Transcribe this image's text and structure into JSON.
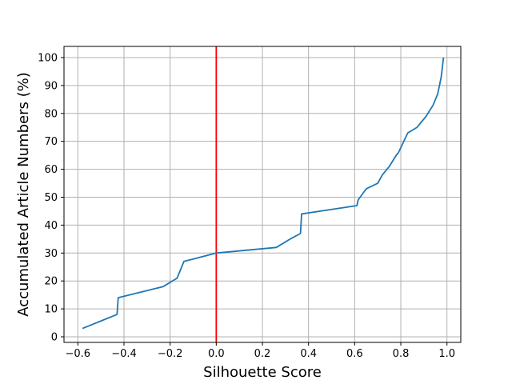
{
  "chart_data": {
    "type": "line",
    "title": "",
    "xlabel": "Silhouette Score",
    "ylabel": "Accumulated Article Numbers (%)",
    "xlim": [
      -0.66,
      1.06
    ],
    "ylim": [
      -2,
      104
    ],
    "x_ticks": [
      -0.6,
      -0.4,
      -0.2,
      0.0,
      0.2,
      0.4,
      0.6,
      0.8,
      1.0
    ],
    "x_tick_labels": [
      "−0.6",
      "−0.4",
      "−0.2",
      "0.0",
      "0.2",
      "0.4",
      "0.6",
      "0.8",
      "1.0"
    ],
    "y_ticks": [
      0,
      10,
      20,
      30,
      40,
      50,
      60,
      70,
      80,
      90,
      100
    ],
    "y_tick_labels": [
      "0",
      "10",
      "20",
      "30",
      "40",
      "50",
      "60",
      "70",
      "80",
      "90",
      "100"
    ],
    "grid": true,
    "colors": {
      "series": "#1f77b4",
      "reference_line": "#ff0000",
      "grid": "#b0b0b0"
    },
    "series": [
      {
        "x": [
          -0.58,
          -0.43,
          -0.425,
          -0.23,
          -0.17,
          -0.14,
          0.0,
          0.26,
          0.32,
          0.365,
          0.37,
          0.61,
          0.615,
          0.65,
          0.7,
          0.72,
          0.75,
          0.78,
          0.79,
          0.83,
          0.87,
          0.91,
          0.94,
          0.96,
          0.975,
          0.985
        ],
        "y": [
          3,
          8,
          14,
          18,
          21,
          27,
          30,
          32,
          35,
          37,
          44,
          47,
          49,
          53,
          55,
          58,
          61,
          65,
          66,
          73,
          75,
          79,
          83,
          87,
          93,
          100
        ]
      }
    ],
    "annotations": [
      {
        "type": "vertical_line",
        "x": 0.0
      }
    ]
  }
}
